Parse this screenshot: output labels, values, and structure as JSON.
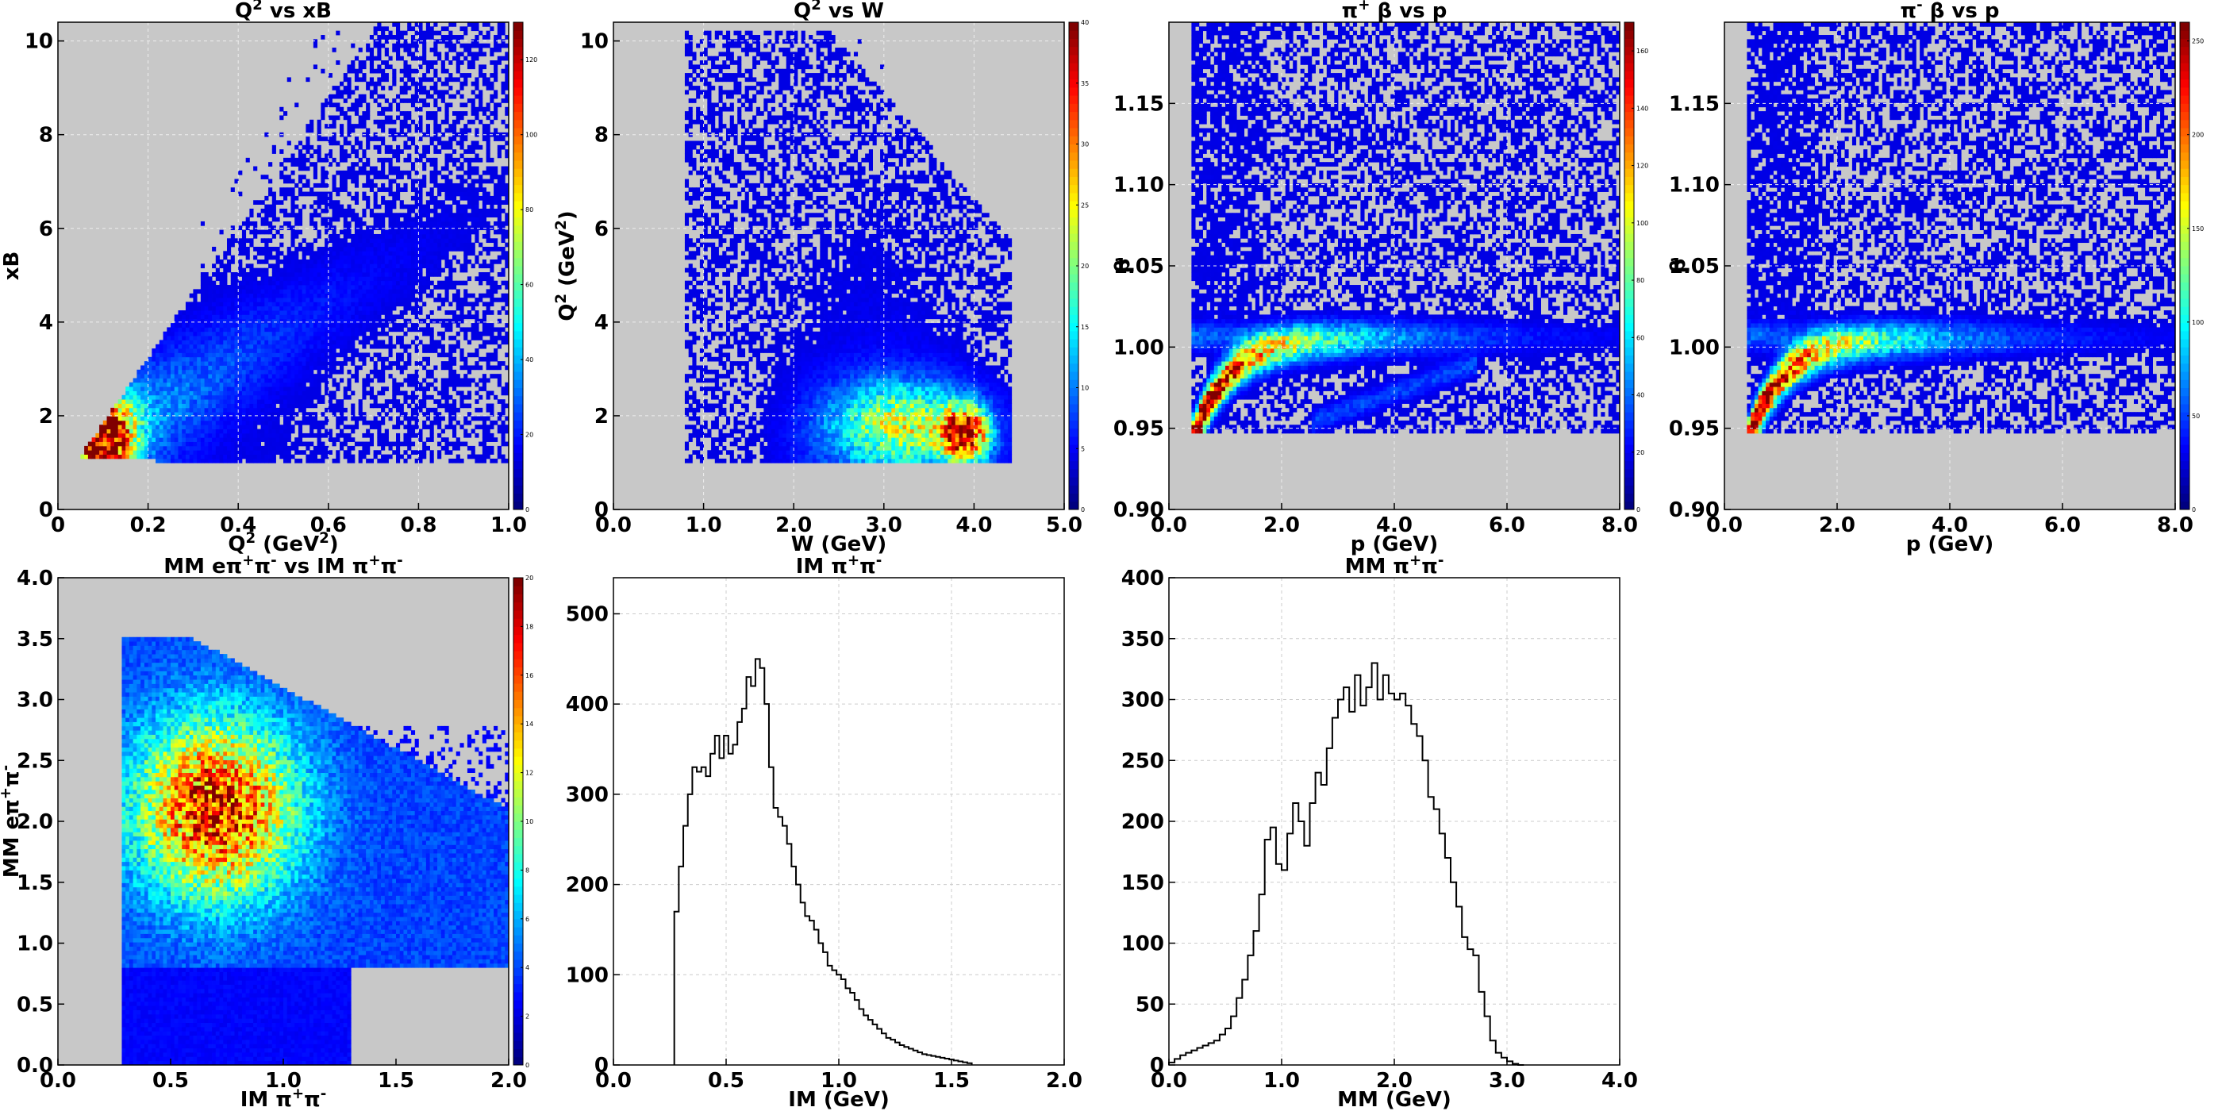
{
  "figure": {
    "background": "#ffffff",
    "plot_bg_2d": "#c8c8c8",
    "colormap": "jet"
  },
  "chart_data": [
    {
      "type": "heatmap",
      "title": "Q<sup>2</sup> vs xB",
      "xlabel": "Q<sup>2</sup> (GeV<sup>2</sup>)",
      "ylabel": "xB",
      "xlim": [
        0,
        1.0
      ],
      "ylim": [
        0,
        10.4
      ],
      "xticks": [
        "0",
        "0.2",
        "0.4",
        "0.6",
        "0.8",
        "1.0"
      ],
      "xtick_values": [
        0,
        0.2,
        0.4,
        0.6,
        0.8,
        1.0
      ],
      "yticks": [
        "0",
        "2",
        "4",
        "6",
        "8",
        "10"
      ],
      "ytick_values": [
        0,
        2,
        4,
        6,
        8,
        10
      ],
      "colorbar": {
        "max": 130,
        "ticks": [
          0,
          20,
          40,
          60,
          80,
          100,
          120
        ]
      },
      "description": "Dense band rising from (0.08,1.2) upward; peak density near Q2=0.1, xB=1.5",
      "density": {
        "kind": "q2xb",
        "peak": [
          0.1,
          1.6
        ],
        "edge_slope": 16
      },
      "grid": true
    },
    {
      "type": "heatmap",
      "title": "Q<sup>2</sup> vs W",
      "xlabel": "W (GeV)",
      "ylabel": "Q<sup>2</sup> (GeV<sup>2</sup>)",
      "xlim": [
        0,
        5.0
      ],
      "ylim": [
        0,
        10.4
      ],
      "xticks": [
        "0.0",
        "1.0",
        "2.0",
        "3.0",
        "4.0",
        "5.0"
      ],
      "xtick_values": [
        0,
        1,
        2,
        3,
        4,
        5
      ],
      "yticks": [
        "0",
        "2",
        "4",
        "6",
        "8",
        "10"
      ],
      "ytick_values": [
        0,
        2,
        4,
        6,
        8,
        10
      ],
      "colorbar": {
        "max": 40,
        "ticks": [
          0,
          5,
          10,
          15,
          20,
          25,
          30,
          35,
          40
        ]
      },
      "density": {
        "kind": "q2w",
        "peak": [
          3.9,
          1.6
        ]
      },
      "grid": true
    },
    {
      "type": "heatmap",
      "title": "π<sup>+</sup> β vs p",
      "xlabel": "p (GeV)",
      "ylabel": "β",
      "xlim": [
        0,
        8.0
      ],
      "ylim": [
        0.9,
        1.2
      ],
      "xticks": [
        "0.0",
        "2.0",
        "4.0",
        "6.0",
        "8.0"
      ],
      "xtick_values": [
        0,
        2,
        4,
        6,
        8
      ],
      "yticks": [
        "0.90",
        "0.95",
        "1.00",
        "1.05",
        "1.10",
        "1.15"
      ],
      "ytick_values": [
        0.9,
        0.95,
        1.0,
        1.05,
        1.1,
        1.15
      ],
      "colorbar": {
        "max": 170,
        "ticks": [
          0,
          20,
          40,
          60,
          80,
          100,
          120,
          140,
          160
        ]
      },
      "density": {
        "kind": "betap",
        "proton_band": true
      },
      "grid": true
    },
    {
      "type": "heatmap",
      "title": "π<sup>-</sup> β vs p",
      "xlabel": "p (GeV)",
      "ylabel": "β",
      "xlim": [
        0,
        8.0
      ],
      "ylim": [
        0.9,
        1.2
      ],
      "xticks": [
        "0.0",
        "2.0",
        "4.0",
        "6.0",
        "8.0"
      ],
      "xtick_values": [
        0,
        2,
        4,
        6,
        8
      ],
      "yticks": [
        "0.90",
        "0.95",
        "1.00",
        "1.05",
        "1.10",
        "1.15"
      ],
      "ytick_values": [
        0.9,
        0.95,
        1.0,
        1.05,
        1.1,
        1.15
      ],
      "colorbar": {
        "max": 260,
        "ticks": [
          0,
          50,
          100,
          150,
          200,
          250
        ]
      },
      "density": {
        "kind": "betap",
        "proton_band": false
      },
      "grid": true
    },
    {
      "type": "heatmap",
      "title": "MM eπ<sup>+</sup>π<sup>-</sup> vs IM π<sup>+</sup>π<sup>-</sup>",
      "xlabel": "IM π<sup>+</sup>π<sup>-</sup>",
      "ylabel": "MM eπ<sup>+</sup>π<sup>-</sup>",
      "xlim": [
        0,
        2.0
      ],
      "ylim": [
        0,
        4.0
      ],
      "xticks": [
        "0.0",
        "0.5",
        "1.0",
        "1.5",
        "2.0"
      ],
      "xtick_values": [
        0,
        0.5,
        1.0,
        1.5,
        2.0
      ],
      "yticks": [
        "0.0",
        "0.5",
        "1.0",
        "1.5",
        "2.0",
        "2.5",
        "3.0",
        "3.5",
        "4.0"
      ],
      "ytick_values": [
        0,
        0.5,
        1.0,
        1.5,
        2.0,
        2.5,
        3.0,
        3.5,
        4.0
      ],
      "colorbar": {
        "max": 20,
        "ticks": [
          0,
          2,
          4,
          6,
          8,
          10,
          12,
          14,
          16,
          18,
          20
        ]
      },
      "density": {
        "kind": "mmim"
      },
      "grid": false
    },
    {
      "type": "histogram",
      "title": "IM π<sup>+</sup>π<sup>-</sup>",
      "xlabel": "IM (GeV)",
      "ylabel": "",
      "xlim": [
        0,
        2.0
      ],
      "ylim": [
        0,
        540
      ],
      "xticks": [
        "0.0",
        "0.5",
        "1.0",
        "1.5",
        "2.0"
      ],
      "xtick_values": [
        0,
        0.5,
        1.0,
        1.5,
        2.0
      ],
      "yticks": [
        "0",
        "100",
        "200",
        "300",
        "400",
        "500"
      ],
      "ytick_values": [
        0,
        100,
        200,
        300,
        400,
        500
      ],
      "bin_start": 0.27,
      "bin_width": 0.02,
      "values": [
        170,
        220,
        265,
        300,
        330,
        325,
        330,
        320,
        345,
        365,
        340,
        365,
        345,
        355,
        380,
        395,
        430,
        420,
        450,
        440,
        400,
        330,
        285,
        275,
        265,
        245,
        220,
        200,
        180,
        165,
        160,
        150,
        135,
        125,
        110,
        105,
        100,
        95,
        85,
        80,
        72,
        62,
        55,
        50,
        45,
        40,
        35,
        30,
        28,
        25,
        22,
        20,
        18,
        16,
        14,
        12,
        11,
        10,
        9,
        8,
        7,
        6,
        5,
        4,
        3,
        2
      ],
      "grid": true
    },
    {
      "type": "histogram",
      "title": "MM π<sup>+</sup>π<sup>-</sup>",
      "xlabel": "MM (GeV)",
      "ylabel": "",
      "xlim": [
        0,
        4.0
      ],
      "ylim": [
        0,
        400
      ],
      "xticks": [
        "0.0",
        "1.0",
        "2.0",
        "3.0",
        "4.0"
      ],
      "xtick_values": [
        0,
        1,
        2,
        3,
        4
      ],
      "yticks": [
        "0",
        "50",
        "100",
        "150",
        "200",
        "250",
        "300",
        "350",
        "400"
      ],
      "ytick_values": [
        0,
        50,
        100,
        150,
        200,
        250,
        300,
        350,
        400
      ],
      "bin_start": 0.0,
      "bin_width": 0.05,
      "values": [
        2,
        5,
        8,
        10,
        12,
        14,
        16,
        18,
        20,
        25,
        30,
        40,
        55,
        70,
        90,
        110,
        140,
        185,
        195,
        165,
        160,
        190,
        215,
        200,
        180,
        215,
        240,
        230,
        260,
        285,
        300,
        310,
        290,
        320,
        295,
        310,
        330,
        300,
        320,
        305,
        300,
        305,
        295,
        280,
        270,
        250,
        220,
        210,
        190,
        170,
        150,
        130,
        105,
        95,
        90,
        60,
        40,
        20,
        10,
        6,
        3,
        1,
        0
      ],
      "grid": true
    }
  ]
}
